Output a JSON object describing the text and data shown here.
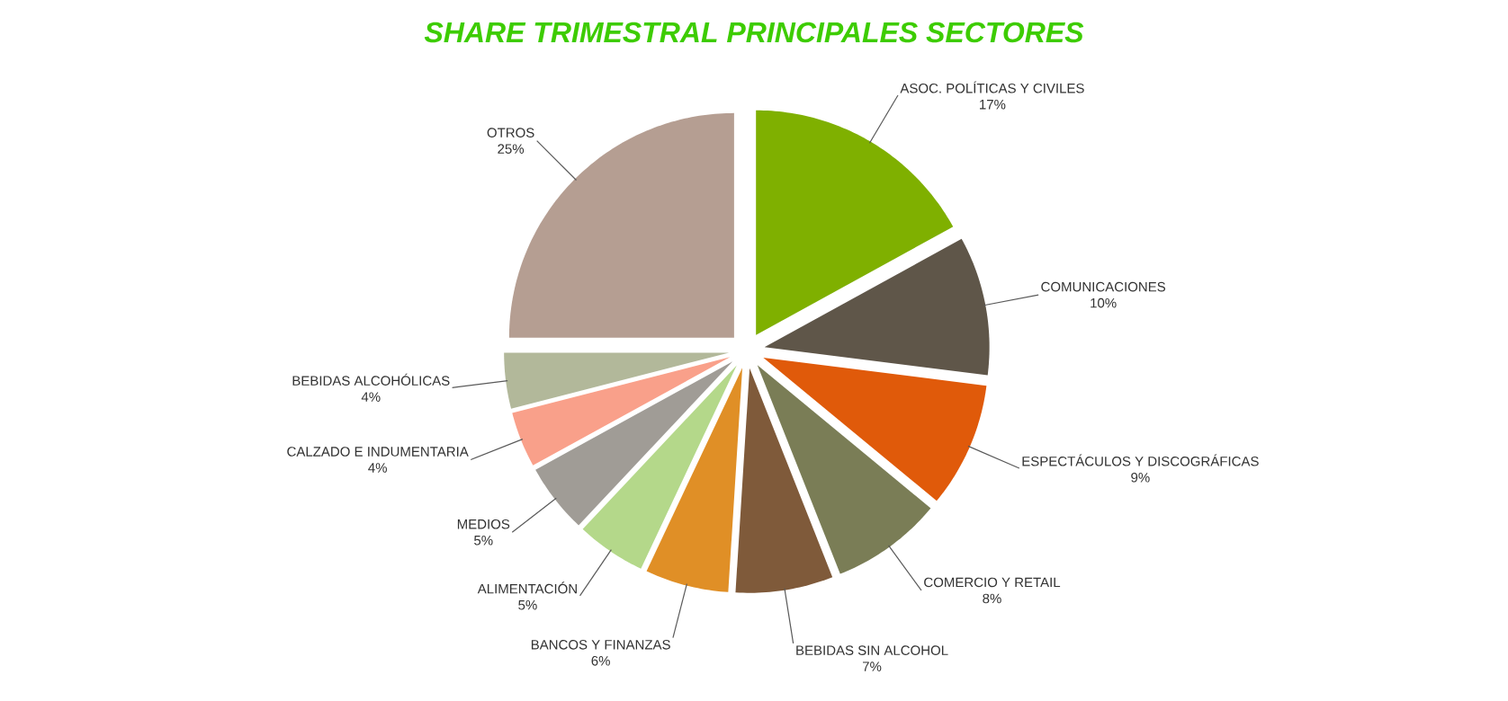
{
  "chart_data": {
    "type": "pie",
    "title": "SHARE TRIMESTRAL PRINCIPALES SECTORES",
    "categories": [
      "ASOC. POLÍTICAS Y CIVILES",
      "COMUNICACIONES",
      "ESPECTÁCULOS Y DISCOGRÁFICAS",
      "COMERCIO Y RETAIL",
      "BEBIDAS SIN ALCOHOL",
      "BANCOS Y FINANZAS",
      "ALIMENTACIÓN",
      "MEDIOS",
      "CALZADO E INDUMENTARIA",
      "BEBIDAS ALCOHÓLICAS",
      "OTROS"
    ],
    "values": [
      17,
      10,
      9,
      8,
      7,
      6,
      5,
      5,
      4,
      4,
      25
    ],
    "value_labels": [
      "17%",
      "10%",
      "9%",
      "8%",
      "7%",
      "6%",
      "5%",
      "5%",
      "4%",
      "4%",
      "25%"
    ],
    "colors": [
      "#7fb000",
      "#5f5649",
      "#e05a0a",
      "#7a7d56",
      "#7f5a3a",
      "#e08f26",
      "#b4d88a",
      "#a09c96",
      "#f9a08a",
      "#b2b89a",
      "#b59e92"
    ]
  }
}
